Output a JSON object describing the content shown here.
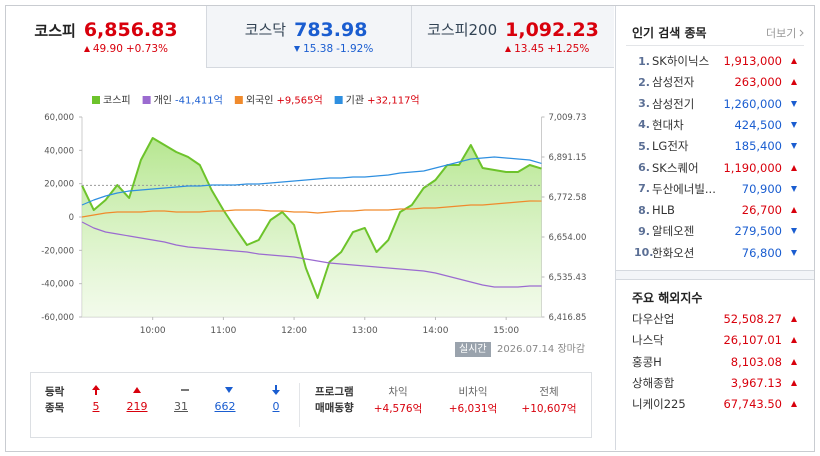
{
  "colors": {
    "up": "#d8000c",
    "down": "#1a5dd0"
  },
  "tabs": [
    {
      "name": "코스피",
      "value": "6,856.83",
      "change": "49.90",
      "rate": "+0.73%",
      "dir": "up",
      "active": true
    },
    {
      "name": "코스닥",
      "value": "783.98",
      "change": "15.38",
      "rate": "-1.92%",
      "dir": "down",
      "active": false
    },
    {
      "name": "코스피200",
      "value": "1,092.23",
      "change": "13.45",
      "rate": "+1.25%",
      "dir": "up",
      "active": false
    }
  ],
  "chart": {
    "type": "line",
    "legend_position": "top",
    "categories": [
      null,
      null,
      null,
      null,
      null,
      null,
      "10:00",
      null,
      null,
      null,
      null,
      null,
      "11:00",
      null,
      null,
      null,
      null,
      null,
      "12:00",
      null,
      null,
      null,
      null,
      null,
      "13:00",
      null,
      null,
      null,
      null,
      null,
      "14:00",
      null,
      null,
      null,
      null,
      null,
      "15:00",
      null,
      null,
      null
    ],
    "series": [
      {
        "name": "코스피",
        "color": "#6dc32b",
        "axis": "y2",
        "area": true,
        "values": [
          6806.9,
          6734.0,
          6763.7,
          6808.1,
          6769.6,
          6882.3,
          6947.5,
          6926.7,
          6906.0,
          6891.2,
          6867.4,
          6793.3,
          6734.0,
          6680.7,
          6630.3,
          6645.1,
          6704.4,
          6728.1,
          6689.6,
          6562.1,
          6473.2,
          6579.9,
          6609.5,
          6668.8,
          6680.7,
          6609.5,
          6645.1,
          6728.1,
          6748.9,
          6799.3,
          6823.0,
          6867.4,
          6867.4,
          6926.7,
          6858.6,
          6852.6,
          6846.7,
          6846.7,
          6867.4,
          6856.83
        ]
      },
      {
        "name": "개인",
        "legend_value": "-41,411억",
        "dir": "down",
        "color": "#9b6bd0",
        "values": [
          -3000,
          -6600,
          -9000,
          -10200,
          -11400,
          -12600,
          -13800,
          -15000,
          -16800,
          -18000,
          -18600,
          -19200,
          -19800,
          -20400,
          -21000,
          -22200,
          -22800,
          -23400,
          -24000,
          -25200,
          -26400,
          -27600,
          -28200,
          -28800,
          -29400,
          -30000,
          -30600,
          -31200,
          -31800,
          -32400,
          -33600,
          -35400,
          -37200,
          -39000,
          -40800,
          -42000,
          -42000,
          -42000,
          -41400,
          -41411
        ]
      },
      {
        "name": "외국인",
        "legend_value": "+9,565억",
        "dir": "up",
        "color": "#f08a2c",
        "values": [
          0,
          1200,
          2400,
          3000,
          3000,
          3000,
          3600,
          3600,
          3000,
          3000,
          3000,
          3600,
          3600,
          4200,
          4200,
          4200,
          3600,
          3600,
          3000,
          3000,
          2400,
          3000,
          3600,
          3600,
          4200,
          4200,
          4200,
          4800,
          4800,
          5400,
          5400,
          6000,
          6600,
          7200,
          7200,
          7800,
          8400,
          9000,
          9600,
          9565
        ]
      },
      {
        "name": "기관",
        "legend_value": "+32,117억",
        "dir": "up",
        "color": "#2e8fe0",
        "values": [
          7200,
          10200,
          12600,
          14400,
          15600,
          16200,
          16800,
          17400,
          18000,
          18600,
          18600,
          19200,
          19200,
          19200,
          19800,
          19800,
          20400,
          21000,
          21600,
          22200,
          22800,
          23400,
          23400,
          24000,
          24000,
          24600,
          25200,
          26400,
          27000,
          27600,
          29400,
          31200,
          33000,
          34800,
          35400,
          36000,
          35400,
          34800,
          34200,
          32117
        ]
      }
    ],
    "ylim": [
      -60000,
      60000
    ],
    "yticks": [
      {
        "value": 60000,
        "label": "60,000"
      },
      {
        "value": 40000,
        "label": "40,000"
      },
      {
        "value": 20000,
        "label": "20,000"
      },
      0,
      {
        "value": -20000,
        "label": "-20,000"
      },
      {
        "value": -40000,
        "label": "-40,000"
      },
      {
        "value": -60000,
        "label": "-60,000"
      }
    ],
    "y2lim": [
      6416.85,
      7009.73
    ],
    "y2ticks": [
      {
        "value": 7009.73,
        "label": "7,009.73"
      },
      {
        "value": 6891.15,
        "label": "6,891.15"
      },
      {
        "value": 6772.58,
        "label": "6,772.58"
      },
      {
        "value": 6654,
        "label": "6,654.00"
      },
      {
        "value": 6535.43,
        "label": "6,535.43"
      },
      {
        "value": 6416.85,
        "label": "6,416.85"
      }
    ],
    "reference": {
      "value": 6806.93,
      "axis": "y2"
    }
  },
  "status": {
    "badge": "실시간",
    "date": "2026.07.14",
    "state": "장마감"
  },
  "breadth": {
    "title": [
      "등락",
      "종목"
    ],
    "counts": [
      5,
      219,
      31,
      662,
      0
    ]
  },
  "program": {
    "title": [
      "프로그램",
      "매매동향"
    ],
    "columns": [
      {
        "name": "차익",
        "value": "+4,576억"
      },
      {
        "name": "비차익",
        "value": "+6,031억"
      },
      {
        "name": "전체",
        "value": "+10,607억"
      }
    ]
  },
  "popular": {
    "title": "인기 검색 종목",
    "more": "더보기",
    "items": [
      {
        "rank": "1.",
        "name": "SK하이닉스",
        "price": "1,913,000",
        "dir": "up"
      },
      {
        "rank": "2.",
        "name": "삼성전자",
        "price": "263,000",
        "dir": "up"
      },
      {
        "rank": "3.",
        "name": "삼성전기",
        "price": "1,260,000",
        "dir": "down"
      },
      {
        "rank": "4.",
        "name": "현대차",
        "price": "424,500",
        "dir": "down"
      },
      {
        "rank": "5.",
        "name": "LG전자",
        "price": "185,400",
        "dir": "down"
      },
      {
        "rank": "6.",
        "name": "SK스퀘어",
        "price": "1,190,000",
        "dir": "up"
      },
      {
        "rank": "7.",
        "name": "두산에너빌...",
        "price": "70,900",
        "dir": "down"
      },
      {
        "rank": "8.",
        "name": "HLB",
        "price": "26,700",
        "dir": "up"
      },
      {
        "rank": "9.",
        "name": "알테오젠",
        "price": "279,500",
        "dir": "down"
      },
      {
        "rank": "10.",
        "name": "한화오션",
        "price": "76,800",
        "dir": "down"
      }
    ]
  },
  "overseas": {
    "title": "주요 해외지수",
    "items": [
      {
        "name": "다우산업",
        "value": "52,508.27",
        "dir": "up"
      },
      {
        "name": "나스닥",
        "value": "26,107.01",
        "dir": "up"
      },
      {
        "name": "홍콩H",
        "value": "8,103.08",
        "dir": "up"
      },
      {
        "name": "상해종합",
        "value": "3,967.13",
        "dir": "up"
      },
      {
        "name": "니케이225",
        "value": "67,743.50",
        "dir": "up"
      }
    ]
  }
}
